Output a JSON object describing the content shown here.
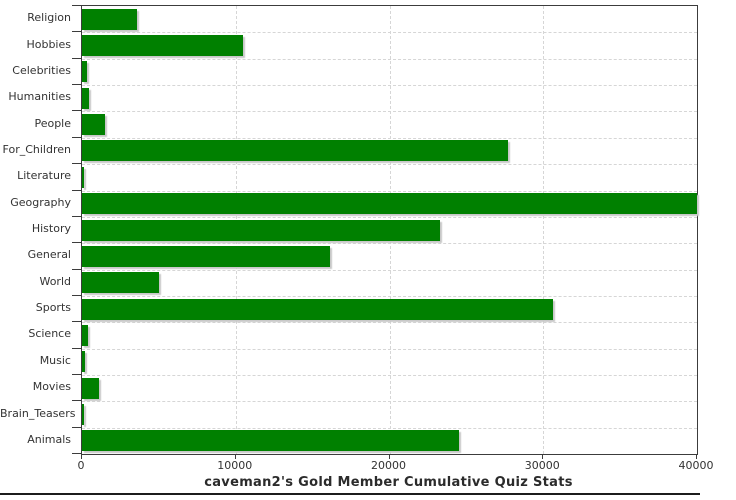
{
  "title": "caveman2's Gold Member Cumulative Quiz Stats",
  "colors": {
    "bar": "#008000",
    "bar_shadow": "#c8c8c8",
    "grid": "#d6d6d6",
    "axis": "#3c3c3c",
    "text": "#333333"
  },
  "chart_data": {
    "type": "bar",
    "orientation": "horizontal",
    "title": "caveman2's Gold Member Cumulative Quiz Stats",
    "xlabel": "",
    "ylabel": "",
    "xlim": [
      0,
      40000
    ],
    "x_ticks": [
      0,
      10000,
      20000,
      30000,
      40000
    ],
    "x_tick_labels": [
      "0",
      "10000",
      "20000",
      "30000",
      "40000"
    ],
    "grid": true,
    "legend": false,
    "categories": [
      "Religion",
      "Hobbies",
      "Celebrities",
      "Humanities",
      "People",
      "For_Children",
      "Literature",
      "Geography",
      "History",
      "General",
      "World",
      "Sports",
      "Science",
      "Music",
      "Movies",
      "Brain_Teasers",
      "Animals"
    ],
    "values": [
      3600,
      10500,
      300,
      450,
      1500,
      27700,
      150,
      40000,
      23300,
      16100,
      5000,
      30600,
      400,
      200,
      1100,
      100,
      24500
    ]
  }
}
